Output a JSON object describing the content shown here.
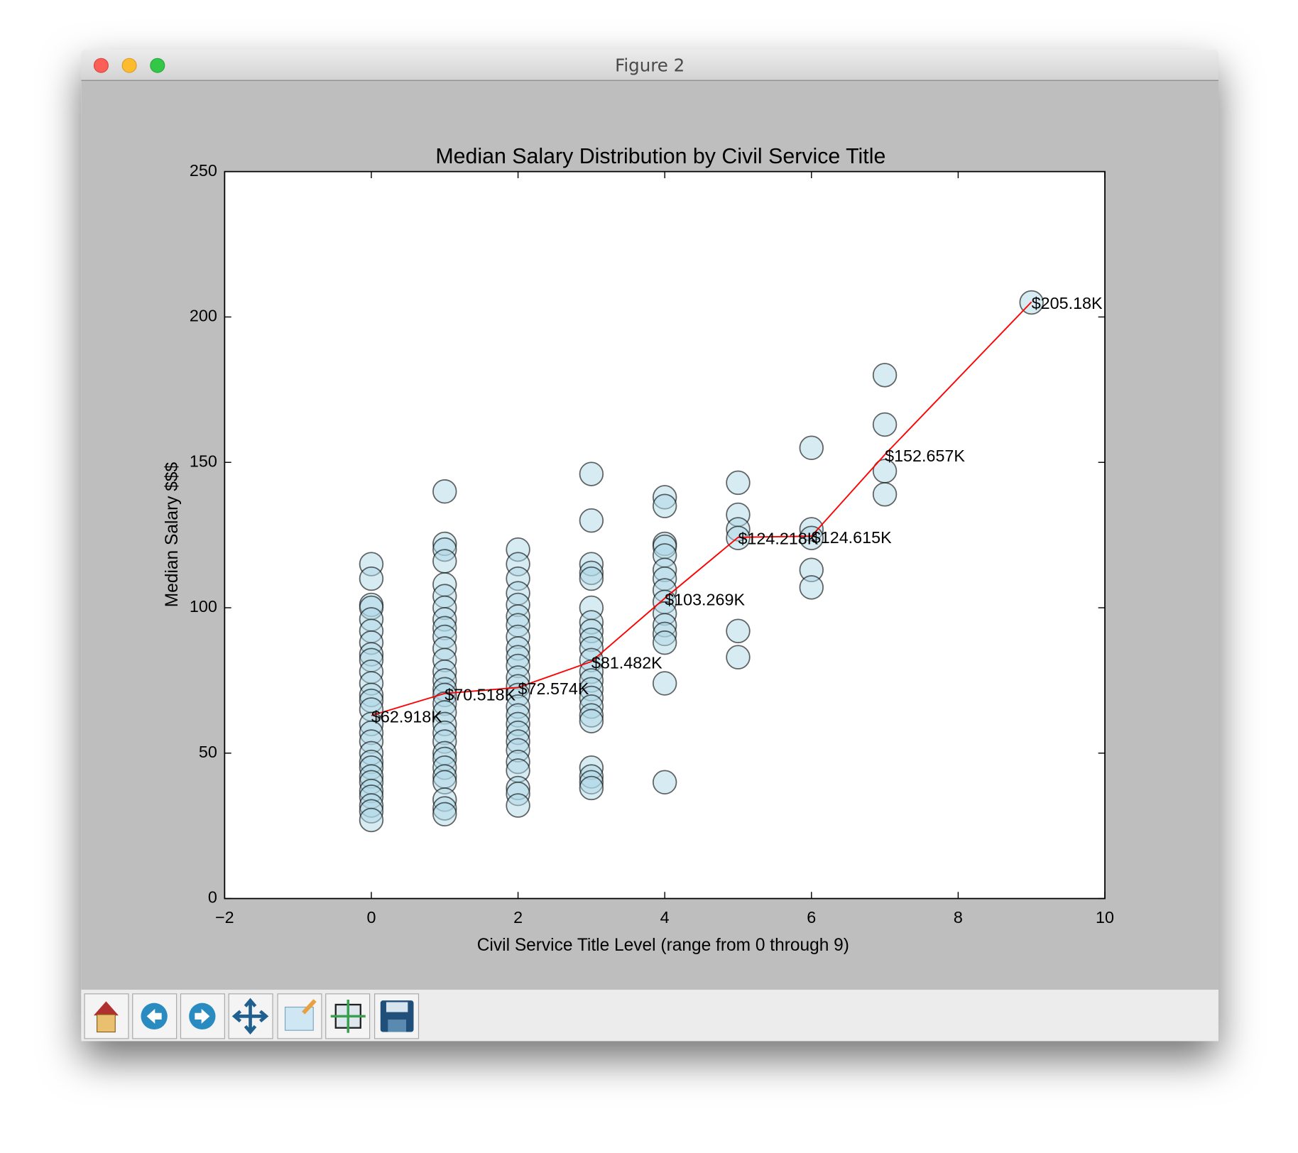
{
  "window": {
    "title": "Figure 2"
  },
  "chart_data": {
    "type": "scatter",
    "title": "Median Salary Distribution by Civil Service Title",
    "x_label": "Civil Service Title Level (range from 0 through 9)",
    "y_label": "Median Salary $$$",
    "xlim": [
      -2,
      10
    ],
    "xticks": [
      {
        "value": -2,
        "label": "−2"
      },
      0,
      2,
      4,
      6,
      8,
      10
    ],
    "ylim": [
      0,
      250
    ],
    "yticks": [
      0,
      50,
      100,
      150,
      200,
      250
    ],
    "series": [
      {
        "type": "scatter",
        "color": "#add8e6",
        "x": [
          0,
          0,
          0,
          0,
          0,
          0,
          0,
          0,
          0,
          0,
          0,
          0,
          0,
          0,
          0,
          0,
          0,
          0,
          0,
          0,
          0,
          0,
          0,
          0,
          0,
          0,
          0,
          1,
          1,
          1,
          1,
          1,
          1,
          1,
          1,
          1,
          1,
          1,
          1,
          1,
          1,
          1,
          1,
          1,
          1,
          1,
          1,
          1,
          1,
          1,
          1,
          1,
          1,
          1,
          1,
          1,
          2,
          2,
          2,
          2,
          2,
          2,
          2,
          2,
          2,
          2,
          2,
          2,
          2,
          2,
          2,
          2,
          2,
          2,
          2,
          2,
          2,
          2,
          2,
          2,
          2,
          3,
          3,
          3,
          3,
          3,
          3,
          3,
          3,
          3,
          3,
          3,
          3,
          3,
          3,
          3,
          3,
          3,
          3,
          3,
          3,
          3,
          3,
          4,
          4,
          4,
          4,
          4,
          4,
          4,
          4,
          4,
          4,
          4,
          4,
          4,
          4,
          4,
          5,
          5,
          5,
          5,
          5,
          5,
          6,
          6,
          6,
          6,
          6,
          7,
          7,
          7,
          7,
          9
        ],
        "values": [
          115,
          110,
          101,
          100,
          96,
          92,
          88,
          84,
          82,
          78,
          74,
          70,
          68,
          65,
          60,
          57,
          54,
          50,
          47,
          45,
          42,
          40,
          37,
          35,
          32,
          30,
          27,
          140,
          122,
          120,
          116,
          108,
          104,
          100,
          96,
          93,
          90,
          86,
          82,
          78,
          75,
          72,
          70,
          67,
          64,
          60,
          57,
          54,
          50,
          48,
          45,
          42,
          40,
          34,
          31,
          29,
          120,
          115,
          110,
          105,
          101,
          97,
          94,
          90,
          86,
          83,
          80,
          76,
          73,
          70,
          66,
          63,
          60,
          57,
          54,
          51,
          47,
          44,
          38,
          36,
          32,
          146,
          130,
          115,
          112,
          110,
          100,
          95,
          92,
          89,
          86,
          82,
          78,
          75,
          72,
          69,
          66,
          63,
          61,
          45,
          42,
          40,
          38,
          138,
          135,
          122,
          121,
          118,
          113,
          110,
          106,
          102,
          98,
          94,
          91,
          88,
          74,
          40,
          143,
          132,
          127,
          124,
          92,
          83,
          155,
          127,
          124,
          113,
          107,
          180,
          163,
          147,
          139,
          205
        ]
      },
      {
        "type": "line",
        "color": "#ff0000",
        "x": [
          0,
          1,
          2,
          3,
          4,
          5,
          6,
          7,
          9
        ],
        "values": [
          62.918,
          70.518,
          72.574,
          81.482,
          103.269,
          124.218,
          124.615,
          152.657,
          205.18
        ],
        "value_labels": [
          "$62.918K",
          "$70.518K",
          "$72.574K",
          "$81.482K",
          "$103.269K",
          "$124.218K",
          "$124.615K",
          "$152.657K",
          "$205.18K"
        ]
      }
    ]
  }
}
